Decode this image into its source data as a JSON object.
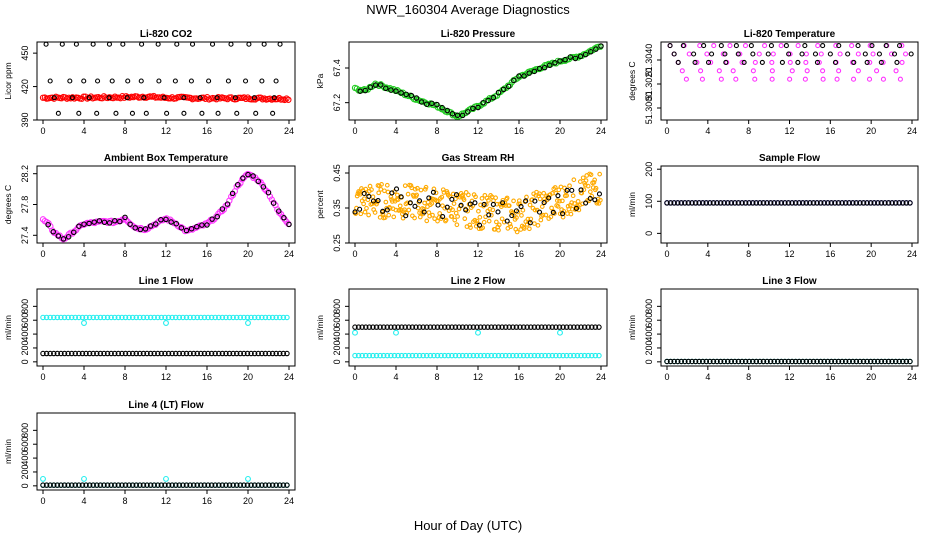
{
  "page": {
    "title": "NWR_160304  Average Diagnostics",
    "xlabel": "Hour of Day (UTC)"
  },
  "colors": {
    "black": "#000000",
    "red": "#ff0000",
    "green": "#22cc22",
    "magenta": "#ff33ff",
    "orange": "#ffaa00",
    "cyan": "#22eeee",
    "blue": "#1a1aff"
  },
  "chart_data": [
    {
      "type": "scatter",
      "title": "Li-820 CO2",
      "ylabel": "Licor ppm",
      "xlim": [
        0,
        24
      ],
      "ylim": [
        390,
        460
      ],
      "x_ticks": [
        0,
        4,
        8,
        12,
        16,
        20,
        24
      ],
      "y_ticks": [
        390,
        420,
        450
      ],
      "y_tick_labels": [
        "390",
        "420",
        "450"
      ],
      "series": [
        {
          "color": "red",
          "kind": "dense-line",
          "x": [
            0,
            4,
            8,
            10,
            12,
            16,
            20,
            24
          ],
          "values": [
            410,
            410,
            410.5,
            411,
            410,
            409.5,
            409.5,
            409
          ]
        },
        {
          "color": "black",
          "kind": "levels",
          "values": [
            458,
            425,
            410,
            396
          ]
        }
      ]
    },
    {
      "type": "scatter",
      "title": "Li-820 Pressure",
      "ylabel": "kPa",
      "xlim": [
        0,
        24
      ],
      "ylim": [
        67.1,
        67.55
      ],
      "x_ticks": [
        0,
        4,
        8,
        12,
        16,
        20,
        24
      ],
      "y_ticks": [
        67.2,
        67.4
      ],
      "y_tick_labels": [
        "67.2",
        "67.4"
      ],
      "series": [
        {
          "color": "green",
          "kind": "dense-line",
          "x": [
            0,
            1,
            2,
            4,
            6,
            8,
            10,
            12,
            14,
            16,
            18,
            20,
            22,
            24
          ],
          "values": [
            67.28,
            67.27,
            67.31,
            67.27,
            67.22,
            67.18,
            67.12,
            67.18,
            67.25,
            67.35,
            67.4,
            67.44,
            67.47,
            67.53
          ]
        },
        {
          "color": "black",
          "kind": "follow"
        }
      ]
    },
    {
      "type": "scatter",
      "title": "Li-820 Temperature",
      "ylabel": "degrees C",
      "xlim": [
        0,
        24
      ],
      "ylim": [
        51.299,
        51.3055
      ],
      "x_ticks": [
        0,
        4,
        8,
        12,
        16,
        20,
        24
      ],
      "y_ticks": [
        51.3,
        51.302,
        51.304
      ],
      "y_tick_labels": [
        "51.3000",
        "51.3020",
        "51.3040"
      ],
      "series": [
        {
          "color": "magenta",
          "kind": "levels",
          "values": [
            51.3052,
            51.3045,
            51.3038,
            51.3031,
            51.3024
          ]
        },
        {
          "color": "black",
          "kind": "levels",
          "values": [
            51.3052,
            51.3045,
            51.3038
          ]
        }
      ]
    },
    {
      "type": "scatter",
      "title": "Ambient Box Temperature",
      "ylabel": "degrees C",
      "xlim": [
        0,
        24
      ],
      "ylim": [
        27.3,
        28.3
      ],
      "x_ticks": [
        0,
        4,
        8,
        12,
        16,
        20,
        24
      ],
      "y_ticks": [
        27.4,
        27.8,
        28.2
      ],
      "y_tick_labels": [
        "27.4",
        "27.8",
        "28.2"
      ],
      "series": [
        {
          "color": "magenta",
          "kind": "dense-line",
          "x": [
            0,
            0.5,
            1,
            2,
            3,
            4,
            6,
            7,
            8,
            9,
            10,
            11,
            12,
            13,
            14,
            16,
            17,
            18,
            19,
            20,
            21,
            22,
            23,
            24
          ],
          "values": [
            27.6,
            27.55,
            27.45,
            27.35,
            27.45,
            27.55,
            27.58,
            27.57,
            27.62,
            27.5,
            27.48,
            27.55,
            27.62,
            27.55,
            27.45,
            27.55,
            27.65,
            27.8,
            28.05,
            28.2,
            28.12,
            27.95,
            27.7,
            27.55
          ]
        },
        {
          "color": "black",
          "kind": "follow"
        }
      ]
    },
    {
      "type": "scatter",
      "title": "Gas Stream RH",
      "ylabel": "percent",
      "xlim": [
        0,
        24
      ],
      "ylim": [
        0.25,
        0.47
      ],
      "x_ticks": [
        0,
        4,
        8,
        12,
        16,
        20,
        24
      ],
      "y_ticks": [
        0.25,
        0.35,
        0.45
      ],
      "y_tick_labels": [
        "0.25",
        "0.35",
        "0.45"
      ],
      "series": [
        {
          "color": "orange",
          "kind": "band",
          "x": [
            0,
            4,
            8,
            12,
            16,
            20,
            24
          ],
          "values": [
            0.37,
            0.37,
            0.36,
            0.34,
            0.33,
            0.37,
            0.41
          ],
          "spread": 0.05
        },
        {
          "color": "black",
          "kind": "band-sparse",
          "x": [
            0,
            4,
            8,
            12,
            16,
            20,
            24
          ],
          "values": [
            0.37,
            0.37,
            0.36,
            0.34,
            0.33,
            0.37,
            0.41
          ],
          "spread": 0.04
        }
      ]
    },
    {
      "type": "scatter",
      "title": "Sample Flow",
      "ylabel": "ml/min",
      "xlim": [
        0,
        24
      ],
      "ylim": [
        -30,
        210
      ],
      "x_ticks": [
        0,
        4,
        8,
        12,
        16,
        20,
        24
      ],
      "y_ticks": [
        0,
        100,
        200
      ],
      "y_tick_labels": [
        "0",
        "100",
        "200"
      ],
      "series": [
        {
          "color": "blue",
          "kind": "constant",
          "value": 95
        },
        {
          "color": "black",
          "kind": "constant",
          "value": 95
        }
      ]
    },
    {
      "type": "scatter",
      "title": "Line 1 Flow",
      "ylabel": "ml/min",
      "xlim": [
        0,
        24
      ],
      "ylim": [
        -60,
        1050
      ],
      "x_ticks": [
        0,
        4,
        8,
        12,
        16,
        20,
        24
      ],
      "y_ticks": [
        0,
        200,
        400,
        600,
        800
      ],
      "y_tick_labels": [
        "0",
        "200",
        "400",
        "600",
        "800"
      ],
      "series": [
        {
          "color": "cyan",
          "kind": "constant",
          "value": 640,
          "dips": [
            4,
            12,
            20
          ],
          "dip_value": 560
        },
        {
          "color": "black",
          "kind": "constant",
          "value": 120
        }
      ]
    },
    {
      "type": "scatter",
      "title": "Line 2 Flow",
      "ylabel": "ml/min",
      "xlim": [
        0,
        24
      ],
      "ylim": [
        -60,
        1050
      ],
      "x_ticks": [
        0,
        4,
        8,
        12,
        16,
        20,
        24
      ],
      "y_ticks": [
        0,
        200,
        400,
        600,
        800
      ],
      "y_tick_labels": [
        "0",
        "200",
        "400",
        "600",
        "800"
      ],
      "series": [
        {
          "color": "cyan",
          "kind": "constant",
          "value": 90,
          "spikes": [
            0,
            4,
            12,
            20
          ],
          "spike_value": 420
        },
        {
          "color": "black",
          "kind": "constant",
          "value": 500
        }
      ]
    },
    {
      "type": "scatter",
      "title": "Line 3 Flow",
      "ylabel": "ml/min",
      "xlim": [
        0,
        24
      ],
      "ylim": [
        -60,
        1050
      ],
      "x_ticks": [
        0,
        4,
        8,
        12,
        16,
        20,
        24
      ],
      "y_ticks": [
        0,
        200,
        400,
        600,
        800
      ],
      "y_tick_labels": [
        "0",
        "200",
        "400",
        "600",
        "800"
      ],
      "series": [
        {
          "color": "cyan",
          "kind": "constant",
          "value": 5
        },
        {
          "color": "black",
          "kind": "constant",
          "value": 5
        }
      ]
    },
    {
      "type": "scatter",
      "title": "Line 4 (LT) Flow",
      "ylabel": "ml/min",
      "xlim": [
        0,
        24
      ],
      "ylim": [
        -60,
        1050
      ],
      "x_ticks": [
        0,
        4,
        8,
        12,
        16,
        20,
        24
      ],
      "y_ticks": [
        0,
        200,
        400,
        600,
        800
      ],
      "y_tick_labels": [
        "0",
        "200",
        "400",
        "600",
        "800"
      ],
      "series": [
        {
          "color": "cyan",
          "kind": "constant",
          "value": 10,
          "spikes": [
            0,
            4,
            12,
            20
          ],
          "spike_value": 100
        },
        {
          "color": "black",
          "kind": "constant",
          "value": 10
        }
      ]
    }
  ]
}
